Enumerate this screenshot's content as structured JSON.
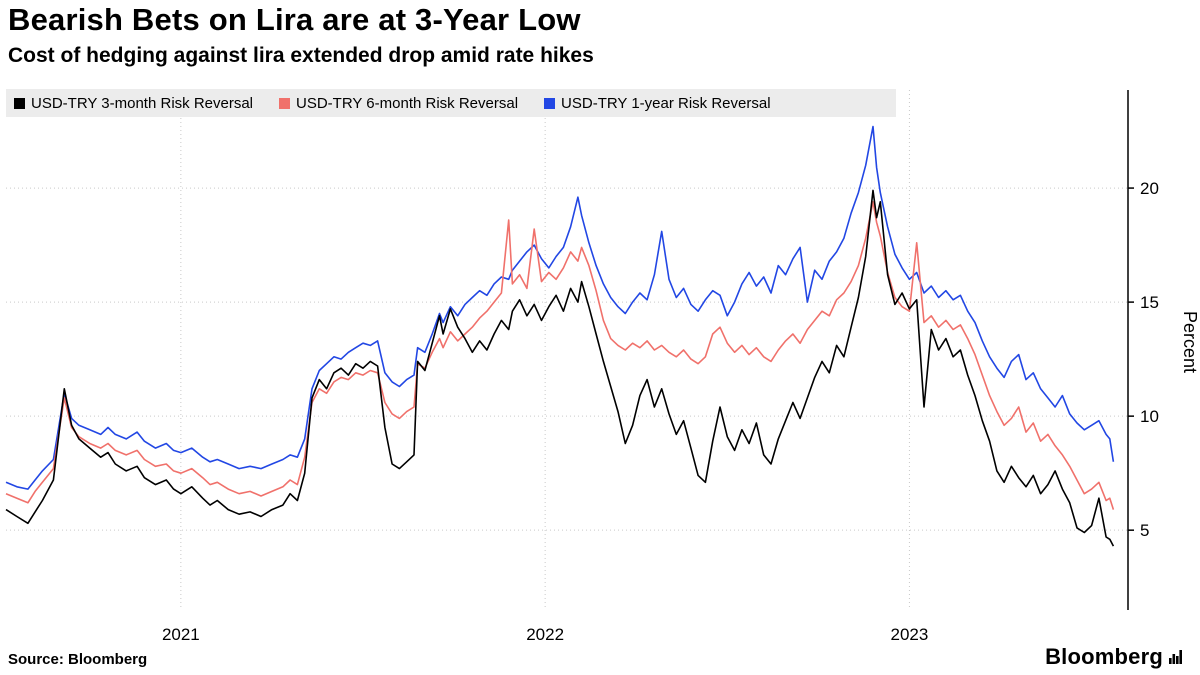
{
  "header": {
    "title": "Bearish Bets on Lira are at 3-Year Low",
    "subtitle": "Cost of hedging against lira extended drop amid rate hikes"
  },
  "footer": {
    "source": "Source: Bloomberg",
    "brand": "Bloomberg"
  },
  "chart_data": {
    "type": "line",
    "title": "Bearish Bets on Lira are at 3-Year Low",
    "subtitle": "Cost of hedging against lira extended drop amid rate hikes",
    "xlabel": "",
    "ylabel": "Percent",
    "xlim": [
      2020.52,
      2023.6
    ],
    "ylim": [
      1.5,
      24.3
    ],
    "yticks": [
      5,
      10,
      15,
      20
    ],
    "xticks": [
      2021,
      2022,
      2023
    ],
    "grid": "dotted",
    "legend_position": "top",
    "x": [
      2020.52,
      2020.55,
      2020.58,
      2020.6,
      2020.62,
      2020.65,
      2020.68,
      2020.7,
      2020.72,
      2020.75,
      2020.78,
      2020.8,
      2020.82,
      2020.85,
      2020.88,
      2020.9,
      2020.93,
      2020.96,
      2020.98,
      2021.0,
      2021.03,
      2021.06,
      2021.08,
      2021.1,
      2021.13,
      2021.16,
      2021.19,
      2021.22,
      2021.25,
      2021.28,
      2021.3,
      2021.32,
      2021.34,
      2021.36,
      2021.38,
      2021.4,
      2021.42,
      2021.44,
      2021.46,
      2021.48,
      2021.5,
      2021.52,
      2021.54,
      2021.56,
      2021.58,
      2021.6,
      2021.62,
      2021.64,
      2021.65,
      2021.67,
      2021.69,
      2021.71,
      2021.72,
      2021.74,
      2021.76,
      2021.78,
      2021.8,
      2021.82,
      2021.84,
      2021.86,
      2021.88,
      2021.9,
      2021.91,
      2021.93,
      2021.95,
      2021.97,
      2021.99,
      2022.01,
      2022.03,
      2022.05,
      2022.07,
      2022.09,
      2022.1,
      2022.12,
      2022.14,
      2022.16,
      2022.18,
      2022.2,
      2022.22,
      2022.24,
      2022.26,
      2022.28,
      2022.3,
      2022.32,
      2022.34,
      2022.36,
      2022.38,
      2022.4,
      2022.42,
      2022.44,
      2022.46,
      2022.48,
      2022.5,
      2022.52,
      2022.54,
      2022.56,
      2022.58,
      2022.6,
      2022.62,
      2022.64,
      2022.66,
      2022.68,
      2022.7,
      2022.72,
      2022.74,
      2022.76,
      2022.78,
      2022.8,
      2022.82,
      2022.84,
      2022.86,
      2022.88,
      2022.9,
      2022.91,
      2022.92,
      2022.94,
      2022.96,
      2022.98,
      2023.0,
      2023.02,
      2023.04,
      2023.06,
      2023.08,
      2023.1,
      2023.12,
      2023.14,
      2023.16,
      2023.18,
      2023.2,
      2023.22,
      2023.24,
      2023.26,
      2023.28,
      2023.3,
      2023.32,
      2023.34,
      2023.36,
      2023.38,
      2023.4,
      2023.42,
      2023.44,
      2023.46,
      2023.48,
      2023.5,
      2023.52,
      2023.54,
      2023.55,
      2023.56
    ],
    "series": [
      {
        "name": "USD-TRY 3-month Risk Reversal",
        "color": "#000000",
        "values": [
          5.9,
          5.6,
          5.3,
          5.8,
          6.3,
          7.2,
          11.2,
          9.6,
          9.0,
          8.6,
          8.2,
          8.4,
          7.9,
          7.6,
          7.8,
          7.3,
          7.0,
          7.2,
          6.8,
          6.6,
          6.9,
          6.4,
          6.1,
          6.3,
          5.9,
          5.7,
          5.8,
          5.6,
          5.9,
          6.1,
          6.6,
          6.3,
          7.5,
          10.8,
          11.6,
          11.2,
          11.9,
          12.1,
          11.8,
          12.3,
          12.1,
          12.4,
          12.2,
          9.5,
          7.9,
          7.7,
          8.0,
          8.3,
          12.4,
          12.0,
          13.2,
          14.4,
          13.6,
          14.7,
          13.9,
          13.4,
          12.8,
          13.3,
          12.9,
          13.6,
          14.2,
          13.8,
          14.6,
          15.1,
          14.4,
          14.9,
          14.2,
          14.8,
          15.3,
          14.6,
          15.6,
          15.0,
          15.9,
          14.8,
          13.6,
          12.4,
          11.3,
          10.2,
          8.8,
          9.6,
          10.9,
          11.6,
          10.4,
          11.2,
          10.1,
          9.2,
          9.8,
          8.6,
          7.4,
          7.1,
          8.9,
          10.4,
          9.1,
          8.5,
          9.4,
          8.8,
          9.7,
          8.3,
          7.9,
          9.0,
          9.8,
          10.6,
          9.9,
          10.8,
          11.7,
          12.4,
          11.9,
          13.1,
          12.6,
          13.9,
          15.2,
          17.0,
          19.9,
          18.7,
          19.4,
          16.2,
          14.9,
          15.4,
          14.7,
          15.1,
          10.4,
          13.8,
          12.9,
          13.4,
          12.6,
          12.9,
          11.8,
          10.9,
          9.8,
          8.9,
          7.6,
          7.1,
          7.8,
          7.3,
          6.9,
          7.4,
          6.6,
          7.0,
          7.6,
          6.8,
          6.2,
          5.1,
          4.9,
          5.2,
          6.4,
          4.7,
          4.6,
          4.3
        ]
      },
      {
        "name": "USD-TRY 6-month Risk Reversal",
        "color": "#f0716b",
        "values": [
          6.6,
          6.4,
          6.2,
          6.7,
          7.1,
          7.7,
          10.8,
          9.5,
          9.1,
          8.8,
          8.6,
          8.8,
          8.5,
          8.3,
          8.5,
          8.1,
          7.8,
          7.9,
          7.6,
          7.5,
          7.7,
          7.3,
          7.0,
          7.1,
          6.8,
          6.6,
          6.7,
          6.5,
          6.7,
          6.9,
          7.2,
          7.0,
          8.2,
          10.6,
          11.2,
          11.0,
          11.5,
          11.7,
          11.6,
          11.9,
          11.8,
          12.0,
          11.9,
          10.6,
          10.1,
          9.9,
          10.2,
          10.4,
          12.3,
          12.1,
          12.8,
          13.4,
          13.0,
          13.7,
          13.3,
          13.6,
          13.9,
          14.3,
          14.6,
          15.0,
          15.4,
          18.6,
          15.8,
          16.2,
          15.6,
          18.2,
          15.9,
          16.3,
          16.0,
          16.5,
          17.2,
          16.8,
          17.4,
          16.6,
          15.5,
          14.2,
          13.4,
          13.1,
          12.9,
          13.2,
          13.0,
          13.3,
          12.9,
          13.1,
          12.8,
          12.6,
          12.9,
          12.5,
          12.3,
          12.6,
          13.6,
          13.9,
          13.2,
          12.8,
          13.1,
          12.7,
          13.0,
          12.6,
          12.4,
          12.9,
          13.3,
          13.6,
          13.2,
          13.8,
          14.2,
          14.6,
          14.4,
          15.1,
          15.4,
          15.9,
          16.6,
          17.8,
          19.4,
          18.5,
          17.9,
          16.3,
          15.2,
          14.8,
          14.6,
          17.6,
          14.1,
          14.4,
          13.9,
          14.2,
          13.8,
          14.0,
          13.4,
          12.7,
          11.8,
          10.9,
          10.2,
          9.6,
          9.9,
          10.4,
          9.3,
          9.7,
          8.9,
          9.2,
          8.7,
          8.3,
          7.8,
          7.2,
          6.6,
          6.8,
          7.1,
          6.3,
          6.4,
          5.9
        ]
      },
      {
        "name": "USD-TRY 1-year Risk Reversal",
        "color": "#2247e4",
        "values": [
          7.1,
          6.9,
          6.8,
          7.2,
          7.6,
          8.1,
          11.0,
          9.9,
          9.6,
          9.4,
          9.2,
          9.5,
          9.2,
          9.0,
          9.3,
          8.9,
          8.6,
          8.8,
          8.5,
          8.4,
          8.6,
          8.2,
          8.0,
          8.1,
          7.9,
          7.7,
          7.8,
          7.7,
          7.9,
          8.1,
          8.3,
          8.2,
          9.0,
          11.2,
          12.0,
          12.3,
          12.6,
          12.5,
          12.8,
          13.0,
          13.2,
          13.1,
          13.3,
          11.9,
          11.5,
          11.3,
          11.6,
          11.8,
          13.0,
          12.8,
          13.6,
          14.5,
          14.1,
          14.8,
          14.4,
          14.9,
          15.2,
          15.5,
          15.3,
          15.8,
          16.1,
          16.0,
          16.4,
          16.8,
          17.2,
          17.5,
          16.9,
          16.5,
          17.0,
          17.4,
          18.3,
          19.6,
          18.8,
          17.6,
          16.6,
          15.8,
          15.2,
          14.8,
          14.5,
          15.0,
          15.4,
          15.1,
          16.2,
          18.1,
          16.0,
          15.2,
          15.6,
          14.9,
          14.6,
          15.1,
          15.5,
          15.3,
          14.4,
          15.0,
          15.8,
          16.3,
          15.7,
          16.1,
          15.4,
          16.6,
          16.2,
          16.9,
          17.4,
          15.0,
          16.4,
          16.0,
          16.8,
          17.2,
          17.8,
          18.9,
          19.8,
          21.0,
          22.7,
          20.9,
          19.8,
          18.3,
          17.1,
          16.5,
          16.0,
          16.3,
          15.4,
          15.7,
          15.2,
          15.5,
          15.1,
          15.3,
          14.6,
          14.1,
          13.3,
          12.6,
          12.1,
          11.7,
          12.4,
          12.7,
          11.6,
          11.9,
          11.2,
          10.8,
          10.4,
          10.9,
          10.1,
          9.7,
          9.4,
          9.6,
          9.8,
          9.2,
          9.0,
          8.0
        ]
      }
    ]
  }
}
